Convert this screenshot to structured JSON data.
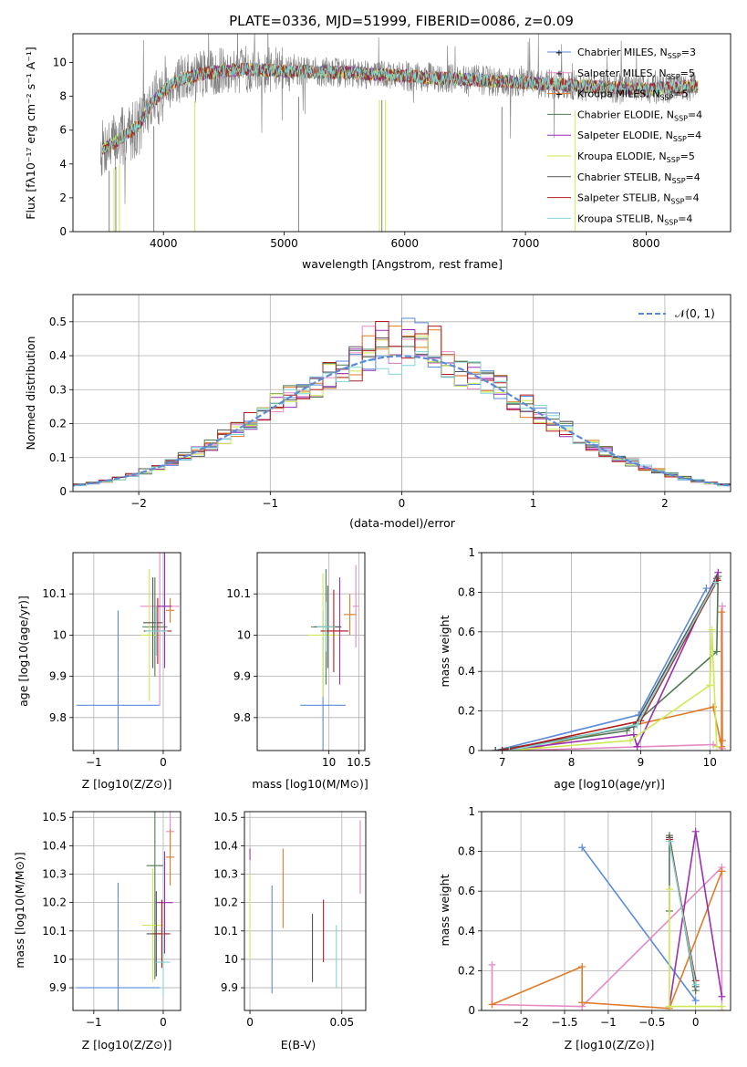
{
  "figure_title": "PLATE=0336, MJD=51999, FIBERID=0086, z=0.09",
  "colors": {
    "chabrier_miles": "#5b8bd8",
    "salpeter_miles": "#e58ac4",
    "kroupa_miles": "#e07b27",
    "chabrier_elodie": "#4f7a56",
    "salpeter_elodie": "#9a2fb2",
    "kroupa_elodie": "#cdea52",
    "chabrier_stelib": "#555555",
    "salpeter_stelib": "#b31d1d",
    "kroupa_stelib": "#80d6d3",
    "spectrum_grey": "#808080",
    "normal_curve": "#5b8bd8"
  },
  "legend_entries": [
    {
      "base": "Chabrier MILES, N",
      "sub": "SSP",
      "val": "=3",
      "color": "#5b8bd8"
    },
    {
      "base": "Salpeter MILES, N",
      "sub": "SSP",
      "val": "=5",
      "color": "#e58ac4"
    },
    {
      "base": "Kroupa MILES, N",
      "sub": "SSP",
      "val": "=5",
      "color": "#e07b27"
    },
    {
      "base": "Chabrier ELODIE, N",
      "sub": "SSP",
      "val": "=4",
      "color": "#4f7a56"
    },
    {
      "base": "Salpeter ELODIE, N",
      "sub": "SSP",
      "val": "=4",
      "color": "#9a2fb2"
    },
    {
      "base": "Kroupa ELODIE, N",
      "sub": "SSP",
      "val": "=5",
      "color": "#cdea52"
    },
    {
      "base": "Chabrier STELIB, N",
      "sub": "SSP",
      "val": "=4",
      "color": "#555555"
    },
    {
      "base": "Salpeter STELIB, N",
      "sub": "SSP",
      "val": "=4",
      "color": "#b31d1d"
    },
    {
      "base": "Kroupa STELIB, N",
      "sub": "SSP",
      "val": "=4",
      "color": "#80d6d3"
    }
  ],
  "chart_data": [
    {
      "id": "spectrum",
      "type": "line",
      "title": "PLATE=0336, MJD=51999, FIBERID=0086, z=0.09",
      "xlabel": "wavelength [Angstrom, rest frame]",
      "ylabel": "Flux [fλ10⁻¹⁷ erg cm⁻² s⁻¹ A⁻¹]",
      "xlim": [
        3250,
        8700
      ],
      "ylim": [
        0,
        11.7
      ],
      "xticks": [
        4000,
        5000,
        6000,
        7000,
        8000
      ],
      "yticks": [
        0,
        2,
        4,
        6,
        8,
        10
      ],
      "grid": false,
      "legend": "right",
      "continuum": {
        "x": [
          3500,
          3600,
          3700,
          3800,
          3900,
          4000,
          4100,
          4200,
          4300,
          4500,
          4700,
          5000,
          5500,
          6000,
          6500,
          7000,
          7500,
          8000,
          8200,
          8400
        ],
        "y": [
          4.9,
          5.3,
          5.8,
          6.3,
          7.6,
          8.3,
          8.9,
          9.1,
          9.3,
          9.5,
          9.6,
          9.5,
          9.4,
          9.2,
          9.0,
          8.8,
          8.6,
          8.4,
          8.5,
          8.6
        ]
      },
      "absorption_lines_x": [
        3550,
        3590,
        3605,
        3635,
        3920,
        4260,
        5120,
        5790,
        5810,
        5840,
        6805,
        7410
      ]
    },
    {
      "id": "residuals",
      "type": "histogram",
      "xlabel": "(data-model)/error",
      "ylabel": "Normed distribution",
      "xlim": [
        -2.5,
        2.5
      ],
      "ylim": [
        0,
        0.58
      ],
      "xticks": [
        -2,
        -1,
        0,
        1,
        2
      ],
      "yticks": [
        0.0,
        0.1,
        0.2,
        0.3,
        0.4,
        0.5
      ],
      "grid": true,
      "legend": "top-right",
      "normal_label": "𝒩(0, 1)",
      "bin_width": 0.1,
      "series_jitter_seed": [
        11,
        23,
        37,
        41,
        53,
        67,
        71,
        83,
        97
      ]
    },
    {
      "id": "age_vs_Z",
      "type": "errorbar",
      "xlabel": "Z [log10(Z/Z⊙)]",
      "ylabel": "age  [log10(age/yr)]",
      "xlim": [
        -1.3,
        0.25
      ],
      "ylim": [
        9.72,
        10.2
      ],
      "xticks": [
        -1,
        0
      ],
      "yticks": [
        9.8,
        9.9,
        10.0,
        10.1
      ],
      "grid": true,
      "points": [
        {
          "x": -0.65,
          "y": 9.83,
          "xerr": 0.6,
          "yerr": 0.23,
          "color": "#5b8bd8"
        },
        {
          "x": -0.05,
          "y": 10.07,
          "xerr": 0.28,
          "yerr": 0.24,
          "color": "#e58ac4"
        },
        {
          "x": 0.1,
          "y": 10.06,
          "xerr": 0.06,
          "yerr": 0.03,
          "color": "#e07b27"
        },
        {
          "x": -0.12,
          "y": 10.02,
          "xerr": 0.18,
          "yerr": 0.12,
          "color": "#4f7a56"
        },
        {
          "x": 0.02,
          "y": 10.07,
          "xerr": 0.1,
          "yerr": 0.15,
          "color": "#9a2fb2"
        },
        {
          "x": -0.2,
          "y": 10.0,
          "xerr": 0.12,
          "yerr": 0.16,
          "color": "#cdea52"
        },
        {
          "x": -0.15,
          "y": 10.03,
          "xerr": 0.14,
          "yerr": 0.11,
          "color": "#555555"
        },
        {
          "x": -0.08,
          "y": 10.01,
          "xerr": 0.2,
          "yerr": 0.08,
          "color": "#b31d1d"
        },
        {
          "x": -0.1,
          "y": 10.01,
          "xerr": 0.16,
          "yerr": 0.06,
          "color": "#80d6d3"
        }
      ]
    },
    {
      "id": "age_vs_mass",
      "type": "errorbar",
      "xlabel": "mass [log10(M/M⊙)]",
      "ylabel": "",
      "xlim": [
        8.8,
        10.6
      ],
      "ylim": [
        9.72,
        10.2
      ],
      "xticks": [
        10.0,
        10.5
      ],
      "yticks": [
        9.8,
        9.9,
        10.0,
        10.1
      ],
      "grid": true,
      "points": [
        {
          "x": 9.9,
          "y": 9.83,
          "xerr": 0.38,
          "yerr": 0.23,
          "color": "#5b8bd8"
        },
        {
          "x": 10.45,
          "y": 10.07,
          "xerr": 0.05,
          "yerr": 0.1,
          "color": "#e58ac4"
        },
        {
          "x": 10.35,
          "y": 10.05,
          "xerr": 0.1,
          "yerr": 0.05,
          "color": "#e07b27"
        },
        {
          "x": 9.95,
          "y": 10.02,
          "xerr": 0.25,
          "yerr": 0.14,
          "color": "#4f7a56"
        },
        {
          "x": 10.18,
          "y": 10.01,
          "xerr": 0.15,
          "yerr": 0.13,
          "color": "#9a2fb2"
        },
        {
          "x": 9.9,
          "y": 10.0,
          "xerr": 0.25,
          "yerr": 0.15,
          "color": "#cdea52"
        },
        {
          "x": 9.98,
          "y": 10.02,
          "xerr": 0.23,
          "yerr": 0.1,
          "color": "#555555"
        },
        {
          "x": 10.08,
          "y": 10.01,
          "xerr": 0.22,
          "yerr": 0.1,
          "color": "#b31d1d"
        },
        {
          "x": 9.95,
          "y": 10.02,
          "xerr": 0.15,
          "yerr": 0.06,
          "color": "#80d6d3"
        }
      ]
    },
    {
      "id": "weight_vs_age",
      "type": "line",
      "xlabel": "age  [log10(age/yr)]",
      "ylabel": "mass weight",
      "xlim": [
        6.7,
        10.3
      ],
      "ylim": [
        0,
        1.0
      ],
      "xticks": [
        7,
        8,
        9,
        10
      ],
      "yticks": [
        0.0,
        0.2,
        0.4,
        0.6,
        0.8,
        1.0
      ],
      "grid": true,
      "series": [
        {
          "color": "#5b8bd8",
          "x": [
            6.9,
            8.97,
            9.95
          ],
          "y": [
            0.0,
            0.18,
            0.82
          ]
        },
        {
          "color": "#e58ac4",
          "x": [
            7.2,
            10.05,
            10.18,
            10.18
          ],
          "y": [
            0.0,
            0.03,
            0.01,
            0.73
          ]
        },
        {
          "color": "#e07b27",
          "x": [
            7.3,
            10.05,
            10.17,
            10.17,
            10.18
          ],
          "y": [
            0.0,
            0.22,
            0.02,
            0.7,
            0.05
          ]
        },
        {
          "color": "#4f7a56",
          "x": [
            6.9,
            8.8,
            10.1,
            10.12
          ],
          "y": [
            0.0,
            0.1,
            0.5,
            0.88
          ]
        },
        {
          "color": "#9a2fb2",
          "x": [
            7.0,
            8.9,
            8.95,
            10.12
          ],
          "y": [
            0.0,
            0.08,
            0.02,
            0.9
          ]
        },
        {
          "color": "#cdea52",
          "x": [
            7.1,
            8.85,
            10.0,
            10.03,
            10.1
          ],
          "y": [
            0.0,
            0.05,
            0.33,
            0.61,
            0.02
          ]
        },
        {
          "color": "#555555",
          "x": [
            6.9,
            8.9,
            10.1
          ],
          "y": [
            0.0,
            0.12,
            0.87
          ]
        },
        {
          "color": "#b31d1d",
          "x": [
            7.0,
            9.0,
            10.11
          ],
          "y": [
            0.0,
            0.15,
            0.86
          ]
        },
        {
          "color": "#80d6d3",
          "x": [
            7.1,
            8.95,
            10.08
          ],
          "y": [
            0.0,
            0.13,
            0.85
          ]
        }
      ]
    },
    {
      "id": "mass_vs_Z",
      "type": "errorbar",
      "xlabel": "Z [log10(Z/Z⊙)]",
      "ylabel": "mass [log10(M/M⊙)]",
      "xlim": [
        -1.3,
        0.25
      ],
      "ylim": [
        9.82,
        10.52
      ],
      "xticks": [
        -1,
        0
      ],
      "yticks": [
        9.9,
        10.0,
        10.1,
        10.2,
        10.3,
        10.4,
        10.5
      ],
      "grid": true,
      "points": [
        {
          "x": -0.65,
          "y": 9.9,
          "xerr": 0.6,
          "yerr": 0.37,
          "color": "#5b8bd8"
        },
        {
          "x": 0.1,
          "y": 10.45,
          "xerr": 0.06,
          "yerr": 0.07,
          "color": "#e58ac4"
        },
        {
          "x": 0.1,
          "y": 10.36,
          "xerr": 0.06,
          "yerr": 0.1,
          "color": "#e07b27"
        },
        {
          "x": -0.12,
          "y": 10.33,
          "xerr": 0.12,
          "yerr": 0.4,
          "color": "#4f7a56"
        },
        {
          "x": 0.02,
          "y": 10.2,
          "xerr": 0.12,
          "yerr": 0.18,
          "color": "#9a2fb2"
        },
        {
          "x": -0.15,
          "y": 10.12,
          "xerr": 0.15,
          "yerr": 0.2,
          "color": "#cdea52"
        },
        {
          "x": -0.1,
          "y": 10.09,
          "xerr": 0.14,
          "yerr": 0.15,
          "color": "#555555"
        },
        {
          "x": -0.02,
          "y": 10.09,
          "xerr": 0.12,
          "yerr": 0.12,
          "color": "#b31d1d"
        },
        {
          "x": 0.0,
          "y": 9.99,
          "xerr": 0.1,
          "yerr": 0.12,
          "color": "#80d6d3"
        }
      ]
    },
    {
      "id": "mass_vs_ebv",
      "type": "errorbar",
      "xlabel": "E(B-V)",
      "ylabel": "",
      "xlim": [
        -0.003,
        0.063
      ],
      "ylim": [
        9.82,
        10.52
      ],
      "xticks": [
        0.0,
        0.05
      ],
      "yticks": [
        9.9,
        10.0,
        10.1,
        10.2,
        10.3,
        10.4,
        10.5
      ],
      "grid": true,
      "points": [
        {
          "x": 0.0,
          "y": 10.37,
          "xerr": 0.0,
          "yerr": 0.02,
          "color": "#9a2fb2"
        },
        {
          "x": 0.0,
          "y": 10.15,
          "xerr": 0.0,
          "yerr": 0.15,
          "color": "#cdea52"
        },
        {
          "x": 0.012,
          "y": 10.07,
          "xerr": 0.0,
          "yerr": 0.19,
          "color": "#5b8bd8"
        },
        {
          "x": 0.018,
          "y": 10.25,
          "xerr": 0.0,
          "yerr": 0.14,
          "color": "#e07b27"
        },
        {
          "x": 0.034,
          "y": 10.04,
          "xerr": 0.0,
          "yerr": 0.12,
          "color": "#555555"
        },
        {
          "x": 0.04,
          "y": 10.1,
          "xerr": 0.0,
          "yerr": 0.11,
          "color": "#b31d1d"
        },
        {
          "x": 0.047,
          "y": 10.01,
          "xerr": 0.0,
          "yerr": 0.11,
          "color": "#80d6d3"
        },
        {
          "x": 0.06,
          "y": 10.36,
          "xerr": 0.0,
          "yerr": 0.13,
          "color": "#e58ac4"
        }
      ]
    },
    {
      "id": "weight_vs_Z",
      "type": "line",
      "xlabel": "Z [log10(Z/Z⊙)]",
      "ylabel": "mass weight",
      "xlim": [
        -2.45,
        0.4
      ],
      "ylim": [
        0,
        1.0
      ],
      "xticks": [
        -2.0,
        -1.5,
        -1.0,
        -0.5,
        0.0
      ],
      "yticks": [
        0.0,
        0.2,
        0.4,
        0.6,
        0.8,
        1.0
      ],
      "grid": true,
      "series": [
        {
          "color": "#5b8bd8",
          "x": [
            -1.3,
            0.0
          ],
          "y": [
            0.82,
            0.05
          ]
        },
        {
          "color": "#e58ac4",
          "x": [
            -2.33,
            -2.33,
            -1.3,
            0.3,
            0.3
          ],
          "y": [
            0.23,
            0.03,
            0.02,
            0.72,
            0.0
          ]
        },
        {
          "color": "#e07b27",
          "x": [
            -2.33,
            -1.3,
            -1.3,
            -0.3,
            0.3
          ],
          "y": [
            0.03,
            0.22,
            0.04,
            0.01,
            0.7
          ]
        },
        {
          "color": "#4f7a56",
          "x": [
            -0.3,
            -0.3,
            0.0
          ],
          "y": [
            0.5,
            0.88,
            0.1
          ]
        },
        {
          "color": "#9a2fb2",
          "x": [
            -0.3,
            0.0,
            0.3
          ],
          "y": [
            0.02,
            0.9,
            0.07
          ]
        },
        {
          "color": "#cdea52",
          "x": [
            -0.3,
            -0.3,
            0.3
          ],
          "y": [
            0.61,
            0.02,
            0.02
          ]
        },
        {
          "color": "#555555",
          "x": [
            -0.3,
            0.0
          ],
          "y": [
            0.87,
            0.12
          ]
        },
        {
          "color": "#b31d1d",
          "x": [
            -0.3,
            0.0
          ],
          "y": [
            0.86,
            0.15
          ]
        },
        {
          "color": "#80d6d3",
          "x": [
            -0.3,
            0.0
          ],
          "y": [
            0.85,
            0.13
          ]
        }
      ]
    }
  ]
}
